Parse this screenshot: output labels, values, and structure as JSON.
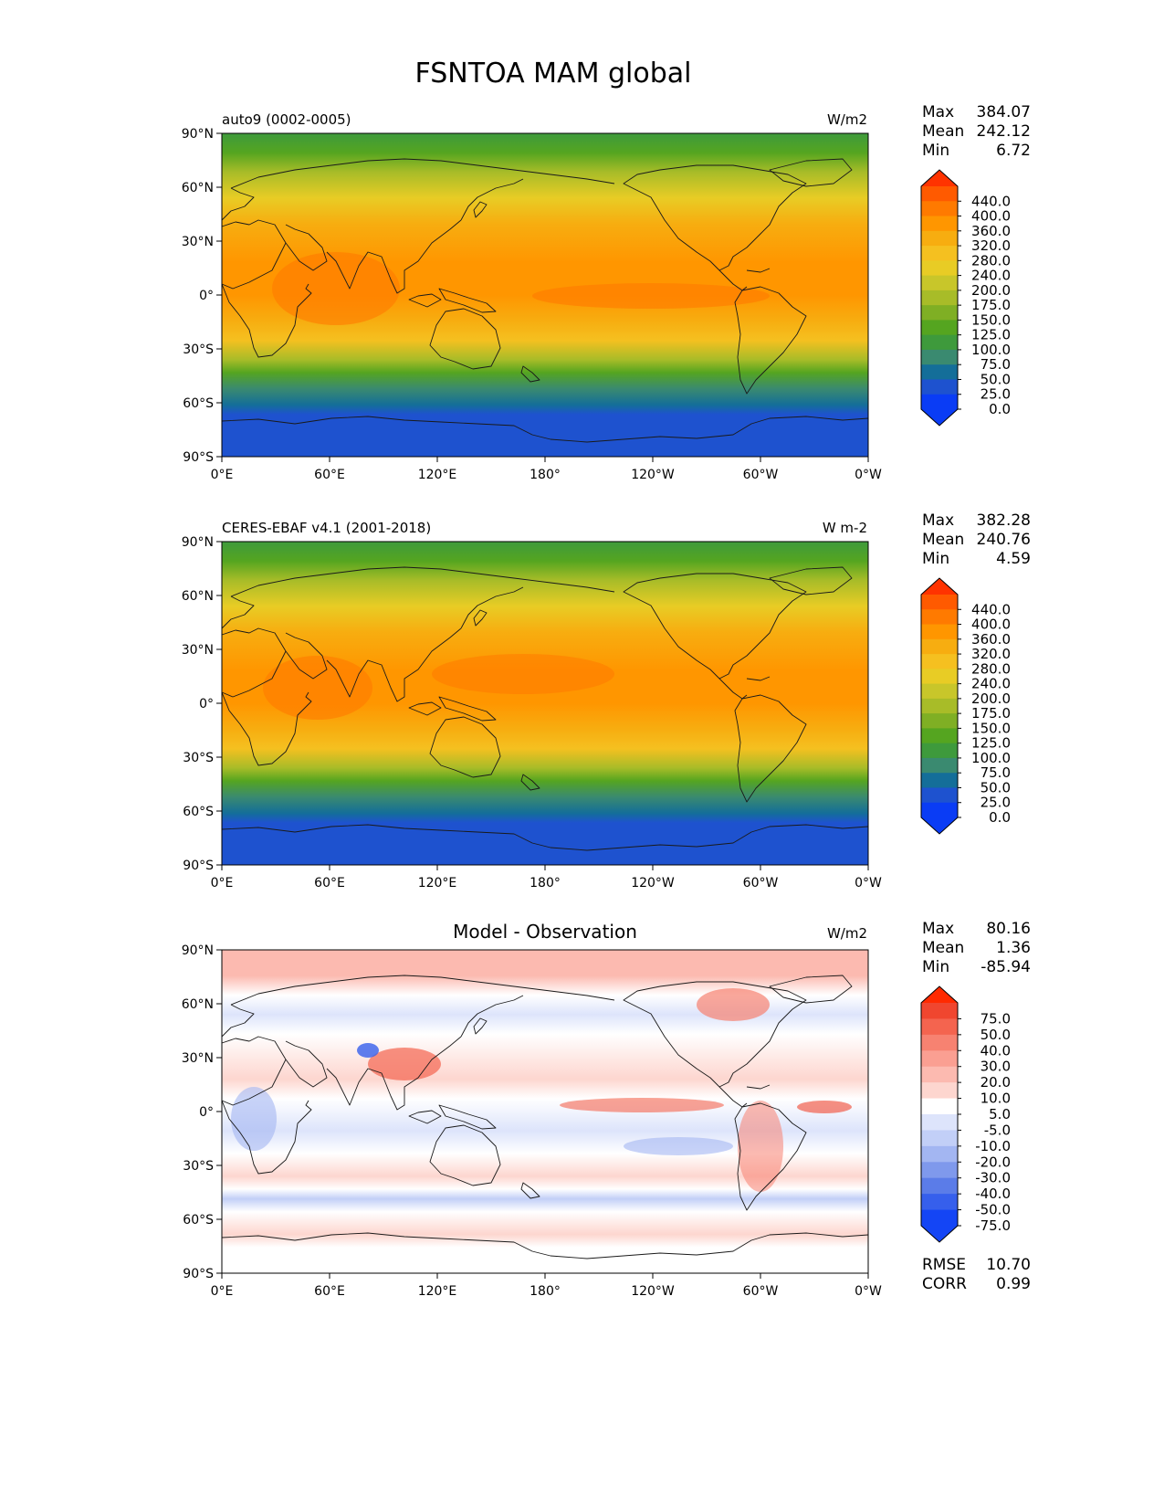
{
  "figure": {
    "title": "FSNTOA MAM global"
  },
  "lat_ticks": [
    "90°N",
    "60°N",
    "30°N",
    "0°",
    "30°S",
    "60°S",
    "90°S"
  ],
  "lon_ticks": [
    "0°E",
    "60°E",
    "120°E",
    "180°",
    "120°W",
    "60°W",
    "0°W"
  ],
  "panels": [
    {
      "id": "model",
      "left_title": "auto9 (0002-0005)",
      "center_title": "",
      "units": "W/m2",
      "stats": {
        "max_label": "Max",
        "max": "384.07",
        "mean_label": "Mean",
        "mean": "242.12",
        "min_label": "Min",
        "min": "6.72"
      },
      "colorbar_labels": [
        "440.0",
        "400.0",
        "360.0",
        "320.0",
        "280.0",
        "240.0",
        "200.0",
        "175.0",
        "150.0",
        "125.0",
        "100.0",
        "75.0",
        "50.0",
        "25.0",
        "0.0"
      ],
      "colorbar_colors": [
        "#ff3300",
        "#ff5a00",
        "#ff7a00",
        "#ff9600",
        "#f7ad10",
        "#f5c020",
        "#e8cc25",
        "#c8c62a",
        "#a8bc28",
        "#7faf24",
        "#55a520",
        "#3e9a3c",
        "#3a8a70",
        "#146e99",
        "#1e52cf",
        "#0a3cf5",
        "#0a3cf5"
      ]
    },
    {
      "id": "obs",
      "left_title": "CERES-EBAF v4.1 (2001-2018)",
      "center_title": "",
      "units": "W m-2",
      "stats": {
        "max_label": "Max",
        "max": "382.28",
        "mean_label": "Mean",
        "mean": "240.76",
        "min_label": "Min",
        "min": "4.59"
      },
      "colorbar_labels": [
        "440.0",
        "400.0",
        "360.0",
        "320.0",
        "280.0",
        "240.0",
        "200.0",
        "175.0",
        "150.0",
        "125.0",
        "100.0",
        "75.0",
        "50.0",
        "25.0",
        "0.0"
      ],
      "colorbar_colors": [
        "#ff3300",
        "#ff5a00",
        "#ff7a00",
        "#ff9600",
        "#f7ad10",
        "#f5c020",
        "#e8cc25",
        "#c8c62a",
        "#a8bc28",
        "#7faf24",
        "#55a520",
        "#3e9a3c",
        "#3a8a70",
        "#146e99",
        "#1e52cf",
        "#0a3cf5",
        "#0a3cf5"
      ]
    },
    {
      "id": "diff",
      "left_title": "",
      "center_title": "Model - Observation",
      "units": "W/m2",
      "stats": {
        "max_label": "Max",
        "max": "80.16",
        "mean_label": "Mean",
        "mean": "1.36",
        "min_label": "Min",
        "min": "-85.94"
      },
      "colorbar_labels": [
        "75.0",
        "50.0",
        "40.0",
        "30.0",
        "20.0",
        "10.0",
        "5.0",
        "-5.0",
        "-10.0",
        "-20.0",
        "-30.0",
        "-40.0",
        "-50.0",
        "-75.0"
      ],
      "colorbar_colors": [
        "#ff2a00",
        "#f0462f",
        "#f4644f",
        "#f78271",
        "#fa9f92",
        "#fcbab0",
        "#fdd6cf",
        "#ffffff",
        "#dde4fb",
        "#c2cff7",
        "#a3b6f2",
        "#7f99ec",
        "#5b7ce8",
        "#365fec",
        "#1445f5",
        "#1445f5"
      ],
      "extra_stats": {
        "rmse_label": "RMSE",
        "rmse": "10.70",
        "corr_label": "CORR",
        "corr": "0.99"
      }
    }
  ]
}
